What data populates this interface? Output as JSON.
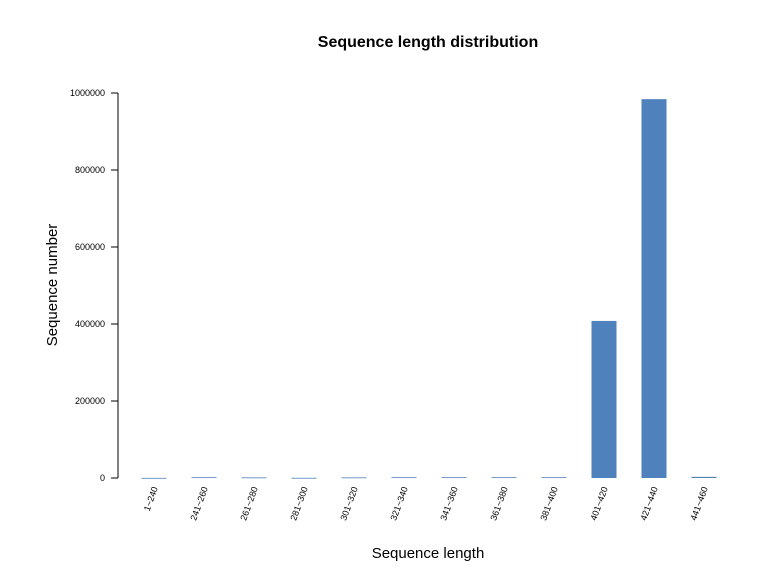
{
  "chart_data": {
    "type": "bar",
    "title": "Sequence length distribution",
    "x_label": "Sequence length",
    "y_label": "Sequence number",
    "categories": [
      "1~240",
      "241~260",
      "261~280",
      "281~300",
      "301~320",
      "321~340",
      "341~360",
      "361~380",
      "381~400",
      "401~420",
      "421~440",
      "441~460"
    ],
    "values": [
      300,
      2000,
      1500,
      500,
      1500,
      2000,
      2000,
      2000,
      2000,
      408000,
      984000,
      3000
    ],
    "color": "#4f81bd",
    "ylim": [
      0,
      1000000
    ],
    "yticks": [
      0,
      200000,
      400000,
      600000,
      800000,
      1000000
    ],
    "grid": false
  }
}
